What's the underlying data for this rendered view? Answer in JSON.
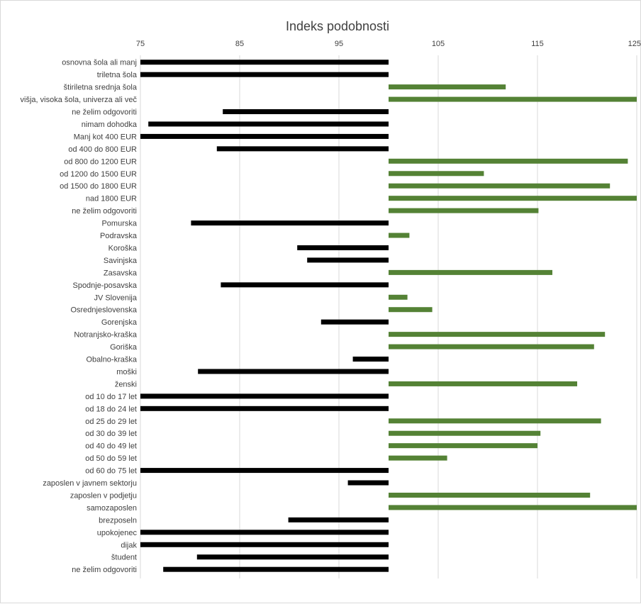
{
  "colors": {
    "negative_bar": "#000000",
    "positive_bar": "#548235",
    "gridline": "#d9d9d9",
    "text": "#404040"
  },
  "chart_data": {
    "type": "bar",
    "orientation": "horizontal",
    "title": "Indeks podobnosti",
    "xlabel": "",
    "ylabel": "",
    "xlim": [
      75,
      125
    ],
    "xticks": [
      75,
      85,
      95,
      105,
      115,
      125
    ],
    "baseline": 100,
    "x_axis_position": "top",
    "grid": true,
    "legend": "none",
    "categories": [
      "osnovna šola ali manj",
      "triletna šola",
      "štiriletna srednja šola",
      "višja, visoka šola, univerza ali več",
      "ne želim odgovoriti",
      "nimam dohodka",
      "Manj kot 400 EUR",
      "od 400 do 800 EUR",
      "od 800 do 1200 EUR",
      "od 1200 do 1500 EUR",
      "od 1500 do 1800 EUR",
      "nad 1800 EUR",
      "ne želim odgovoriti",
      "Pomurska",
      "Podravska",
      "Koroška",
      "Savinjska",
      "Zasavska",
      "Spodnje-posavska",
      "JV Slovenija",
      "Osrednjeslovenska",
      "Gorenjska",
      "Notranjsko-kraška",
      "Goriška",
      "Obalno-kraška",
      "moški",
      "ženski",
      "od 10 do 17 let",
      "od 18 do 24 let",
      "od 25 do 29 let",
      "od 30 do 39 let",
      "od 40 do 49 let",
      "od 50 do 59 let",
      "od 60 do 75 let",
      "zaposlen v javnem sektorju",
      "zaposlen v podjetju",
      "samozaposlen",
      "brezposeln",
      "upokojenec",
      "dijak",
      "študent",
      "ne želim odgovoriti"
    ],
    "values": [
      75,
      75,
      111.8,
      125,
      83.3,
      75.8,
      75,
      82.7,
      124.1,
      109.6,
      122.3,
      125,
      115.1,
      80.1,
      102.1,
      90.8,
      91.8,
      116.5,
      83.1,
      101.9,
      104.4,
      93.2,
      121.8,
      120.7,
      96.4,
      80.8,
      119,
      75,
      75,
      121.4,
      115.3,
      115,
      105.9,
      75,
      95.9,
      120.3,
      125,
      89.9,
      75,
      75,
      80.7,
      77.3
    ]
  }
}
